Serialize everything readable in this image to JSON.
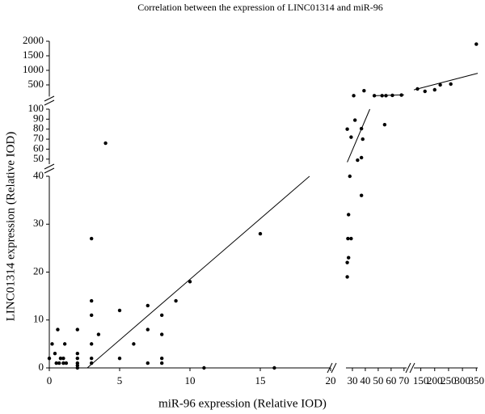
{
  "chart_data": {
    "type": "scatter",
    "title": "Correlation between the expression of LINC01314 and miR-96",
    "x_label": "miR-96 expression (Relative IOD)",
    "y_label": "LINC01314 expression (Relative IOD)",
    "color": "#000000",
    "x_axes": [
      {
        "xlim": [
          0,
          20
        ],
        "xticks": [
          0,
          5,
          10,
          15,
          20
        ]
      },
      {
        "xlim": [
          25,
          72
        ],
        "xticks": [
          30,
          40,
          50,
          60,
          70
        ]
      },
      {
        "xlim": [
          125,
          355
        ],
        "xticks": [
          150,
          200,
          250,
          300,
          350
        ]
      }
    ],
    "y_axes": [
      {
        "ylim": [
          0,
          40
        ],
        "yticks": [
          0,
          10,
          20,
          30,
          40
        ]
      },
      {
        "ylim": [
          45,
          100
        ],
        "yticks": [
          50,
          60,
          70,
          80,
          90,
          100
        ]
      },
      {
        "ylim": [
          100,
          2000
        ],
        "yticks": [
          500,
          1000,
          1500,
          2000
        ]
      }
    ],
    "series": [
      {
        "x": [
          0,
          0.2,
          0.4,
          0.5,
          0.6,
          0.7,
          0.8,
          1,
          1,
          1.1,
          1.2,
          2,
          2,
          2,
          2,
          2,
          2,
          3,
          3,
          3,
          3,
          3,
          3,
          3.5,
          4,
          5,
          5,
          6,
          7,
          7,
          7,
          8,
          8,
          8,
          8,
          9,
          10,
          11,
          15,
          16,
          26,
          26,
          26.5,
          27,
          27,
          28,
          29,
          26,
          29,
          32,
          34,
          37,
          37,
          38,
          37,
          55,
          31,
          39,
          47,
          53,
          56,
          61,
          68,
          138,
          165,
          200,
          220,
          258,
          350
        ],
        "y": [
          2,
          5,
          3,
          1,
          8,
          1,
          2,
          1,
          2,
          5,
          1,
          0,
          0.5,
          1,
          2,
          3,
          8,
          1,
          2,
          5,
          11,
          14,
          27,
          7,
          66,
          12,
          2,
          5,
          1,
          8,
          13,
          1,
          2,
          7,
          11,
          14,
          18,
          0,
          28,
          0,
          22,
          19,
          27,
          23,
          32,
          40,
          27,
          80,
          72,
          89,
          49,
          51.5,
          80.5,
          70,
          36,
          84.5,
          130,
          300,
          130,
          130,
          130,
          140,
          150,
          361,
          278,
          333,
          500,
          528,
          1900
        ]
      }
    ],
    "trend_lines": [
      {
        "x": [
          2.7,
          18.5
        ],
        "y": [
          0,
          40
        ]
      },
      {
        "x": [
          26,
          43.5
        ],
        "y": [
          47,
          100
        ]
      },
      {
        "x": [
          47,
          70
        ],
        "y": [
          130,
          160
        ]
      },
      {
        "x": [
          125,
          355
        ],
        "y": [
          330,
          900
        ]
      }
    ]
  }
}
